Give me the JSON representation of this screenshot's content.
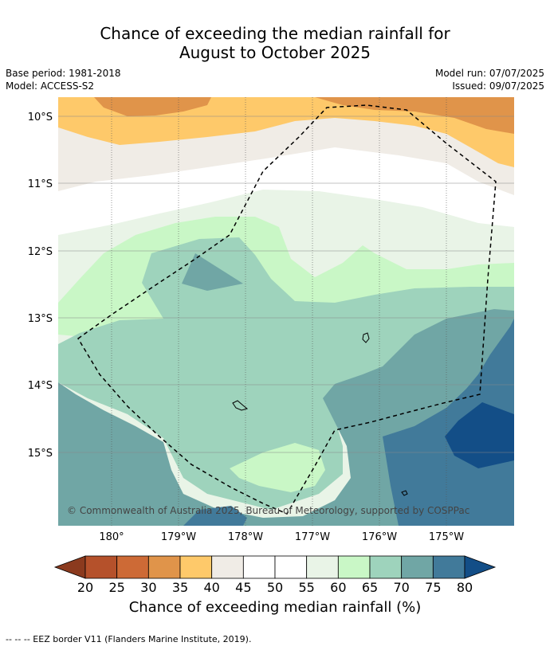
{
  "title_line1": "Chance of exceeding the median rainfall for",
  "title_line2": "August to October 2025",
  "base_period": "Base period: 1981-2018",
  "model": "Model: ACCESS-S2",
  "model_run": "Model run: 07/07/2025",
  "issued": "Issued: 09/07/2025",
  "copyright": "© Commonwealth of Australia 2025, Bureau of Meteorology, supported by COSPPac",
  "lat_labels": [
    "10°S",
    "11°S",
    "12°S",
    "13°S",
    "14°S",
    "15°S"
  ],
  "lon_labels": [
    "180°",
    "179°W",
    "178°W",
    "177°W",
    "176°W",
    "175°W"
  ],
  "colorbar": {
    "ticks": [
      "20",
      "25",
      "30",
      "35",
      "40",
      "45",
      "50",
      "55",
      "60",
      "65",
      "70",
      "75",
      "80"
    ],
    "colors": [
      "#8b3a1e",
      "#b5512b",
      "#cd6a36",
      "#e0944a",
      "#fec96a",
      "#f0ece6",
      "#ffffff",
      "#ffffff",
      "#e9f4e7",
      "#c9f7c6",
      "#9ed3bc",
      "#70a6a5",
      "#417a9a",
      "#134e87"
    ],
    "title": "Chance of exceeding median rainfall (%)"
  },
  "footnote": "--  --  -- EEZ border V11 (Flanders Marine Institute, 2019)."
}
